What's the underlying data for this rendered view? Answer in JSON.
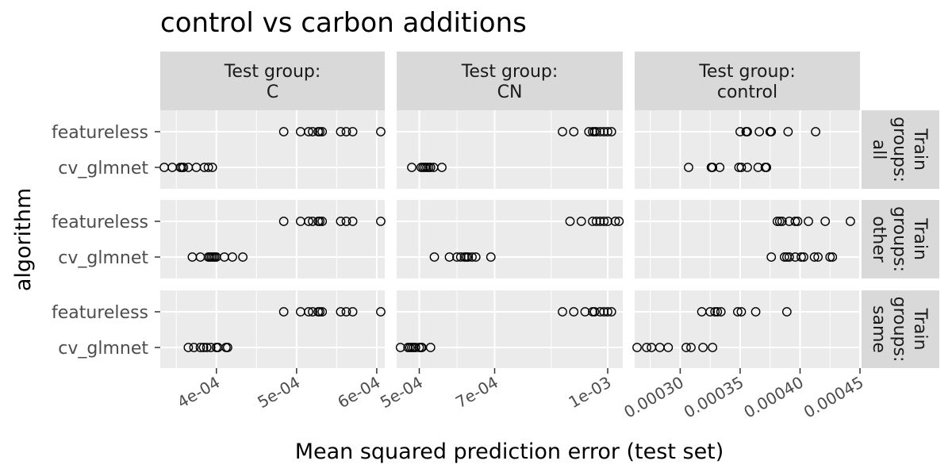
{
  "chart_data": {
    "type": "scatter",
    "title": "control vs carbon additions",
    "xlabel": "Mean squared prediction error (test set)",
    "ylabel": "algorithm",
    "categories": [
      "featureless",
      "cv_glmnet"
    ],
    "facet_columns": [
      {
        "label": "Test group:\nC",
        "xlim": [
          0.00033,
          0.00061
        ],
        "ticks": [
          0.0004,
          0.0005,
          0.0006
        ],
        "tick_labels": [
          "4e-04",
          "5e-04",
          "6e-04"
        ]
      },
      {
        "label": "Test group:\nCN",
        "xlim": [
          0.00044,
          0.00104
        ],
        "ticks": [
          0.0005,
          0.0007,
          0.001
        ],
        "tick_labels": [
          "5e-04",
          "7e-04",
          "1e-03"
        ]
      },
      {
        "label": "Test group:\ncontrol",
        "xlim": [
          0.000262,
          0.00045
        ],
        "ticks": [
          0.0003,
          0.00035,
          0.0004,
          0.00045
        ],
        "tick_labels": [
          "0.00030",
          "0.00035",
          "0.00040",
          "0.00045"
        ]
      }
    ],
    "facet_rows": [
      {
        "label": "Train\ngroups:\nall"
      },
      {
        "label": "Train\ngroups:\nother"
      },
      {
        "label": "Train\ngroups:\nsame"
      }
    ],
    "points": [
      [
        {
          "featureless": [
            0.000484,
            0.000505,
            0.000515,
            0.00052,
            0.000527,
            0.000529,
            0.000532,
            0.000555,
            0.000562,
            0.00057,
            0.000605
          ],
          "cv_glmnet": [
            0.000335,
            0.000345,
            0.000355,
            0.000357,
            0.000359,
            0.000365,
            0.000375,
            0.000385,
            0.00039,
            0.000395
          ]
        },
        {
          "featureless": [
            0.00088,
            0.00091,
            0.00095,
            0.00096,
            0.000965,
            0.00097,
            0.00098,
            0.00099,
            0.001,
            0.00101
          ],
          "cv_glmnet": [
            0.00048,
            0.000505,
            0.00051,
            0.000515,
            0.00052,
            0.000525,
            0.00053,
            0.000538,
            0.00056
          ]
        },
        {
          "featureless": [
            0.00035,
            0.000355,
            0.000356,
            0.000366,
            0.000375,
            0.000376,
            0.00039,
            0.000413
          ],
          "cv_glmnet": [
            0.000307,
            0.000326,
            0.000327,
            0.000333,
            0.000349,
            0.000351,
            0.000356,
            0.000365,
            0.000371,
            0.000372
          ]
        }
      ],
      [
        {
          "featureless": [
            0.000484,
            0.000505,
            0.000515,
            0.00052,
            0.000527,
            0.000529,
            0.000532,
            0.000555,
            0.000562,
            0.00057,
            0.000605
          ],
          "cv_glmnet": [
            0.00037,
            0.00038,
            0.00039,
            0.000392,
            0.000394,
            0.000396,
            0.000398,
            0.0004,
            0.00041,
            0.00042,
            0.000433
          ]
        },
        {
          "featureless": [
            0.0009,
            0.00093,
            0.00096,
            0.00097,
            0.00098,
            0.00099,
            0.001,
            0.00102,
            0.00103
          ],
          "cv_glmnet": [
            0.00054,
            0.00058,
            0.0006,
            0.00061,
            0.00062,
            0.000625,
            0.00063,
            0.00064,
            0.00065,
            0.00069
          ]
        },
        {
          "featureless": [
            0.000381,
            0.000383,
            0.000385,
            0.000391,
            0.000396,
            0.000398,
            0.000407,
            0.000421,
            0.000442
          ],
          "cv_glmnet": [
            0.000376,
            0.000387,
            0.000389,
            0.000391,
            0.000396,
            0.000401,
            0.000403,
            0.000412,
            0.000415,
            0.000425,
            0.000427
          ]
        }
      ],
      [
        {
          "featureless": [
            0.000484,
            0.000505,
            0.000515,
            0.00052,
            0.000527,
            0.000529,
            0.000532,
            0.000555,
            0.000562,
            0.00057,
            0.000605
          ],
          "cv_glmnet": [
            0.000365,
            0.000372,
            0.00038,
            0.000384,
            0.000388,
            0.000393,
            0.0004,
            0.000402,
            0.000412,
            0.000414
          ]
        },
        {
          "featureless": [
            0.00088,
            0.00091,
            0.00094,
            0.00096,
            0.000965,
            0.00098,
            0.00099,
            0.001,
            0.00101
          ],
          "cv_glmnet": [
            0.00045,
            0.00047,
            0.000475,
            0.00048,
            0.000485,
            0.00049,
            0.0005,
            0.000505,
            0.000507,
            0.00053
          ]
        },
        {
          "featureless": [
            0.000318,
            0.000325,
            0.000329,
            0.000331,
            0.000334,
            0.000348,
            0.000351,
            0.000363,
            0.000389
          ],
          "cv_glmnet": [
            0.000264,
            0.000272,
            0.000276,
            0.000283,
            0.00029,
            0.000305,
            0.000309,
            0.000319,
            0.000327
          ]
        }
      ]
    ],
    "grid": true,
    "legend": "none"
  }
}
